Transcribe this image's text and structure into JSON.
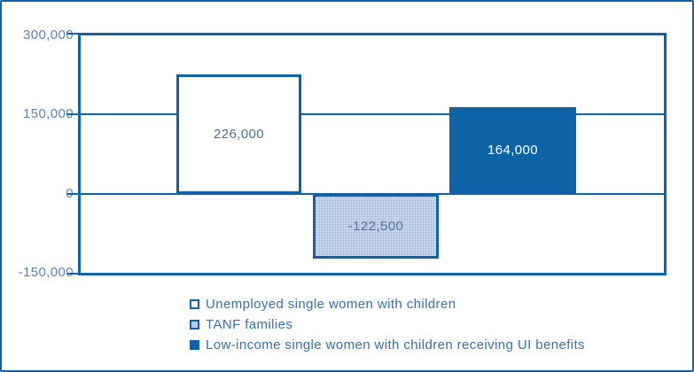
{
  "colors": {
    "dark_blue": "#0d63a6",
    "light_blue_fill": "#c8d5eb",
    "axis_text": "#5c80b4",
    "bar_label_text": "#4f7099",
    "legend_text": "#3471ad",
    "white": "#ffffff"
  },
  "chart_data": {
    "type": "bar",
    "title": "",
    "xlabel": "",
    "ylabel": "",
    "ylim": [
      -150000,
      300000
    ],
    "grid": true,
    "gridline_values": [
      150000,
      0
    ],
    "y_tick_values": [
      300000,
      150000,
      0,
      -150000
    ],
    "y_ticks": [
      "300,000",
      "150,000",
      "0",
      "-150,000"
    ],
    "categories": [
      "Unemployed single women with children",
      "TANF families",
      "Low-income single women with children receiving UI benefits"
    ],
    "values": [
      226000,
      -122500,
      164000
    ],
    "bar_labels": [
      "226,000",
      "-122,500",
      "164,000"
    ],
    "series_styles": [
      {
        "fill": "#ffffff",
        "border": "#0d63a6",
        "pattern": "none",
        "label_color": "#4f7099"
      },
      {
        "fill": "#c8d5eb",
        "border": "#0d63a6",
        "pattern": "dotted",
        "label_color": "#4f7099"
      },
      {
        "fill": "#0d63a6",
        "border": "#0d63a6",
        "pattern": "solid",
        "label_color": "#ffffff"
      }
    ],
    "legend_position": "bottom-left",
    "legend": [
      {
        "label": "Unemployed single women with children"
      },
      {
        "label": "TANF families"
      },
      {
        "label": "Low-income single women with children receiving UI benefits"
      }
    ]
  }
}
